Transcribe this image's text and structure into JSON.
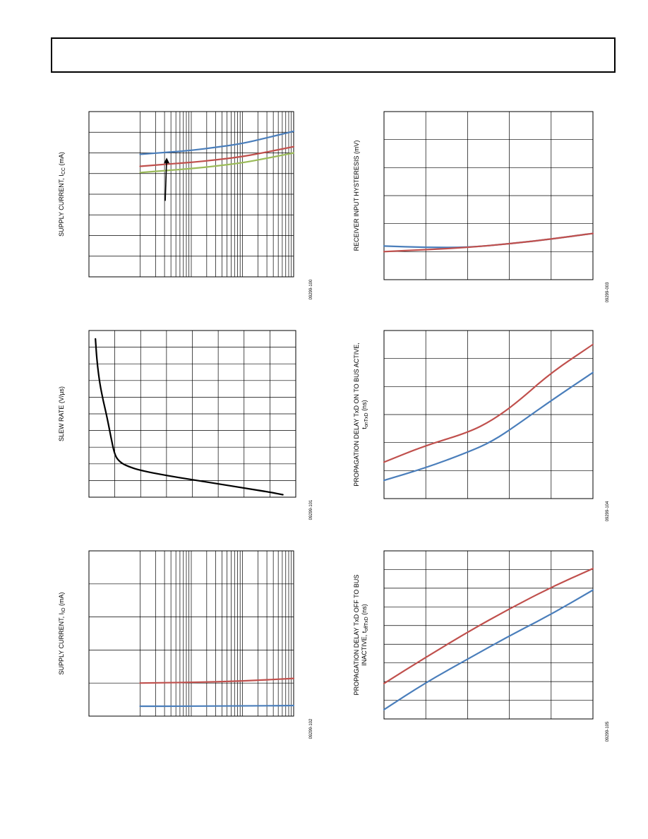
{
  "colors": {
    "blue": "#4a7ebb",
    "red": "#c0504d",
    "green": "#9bbb59",
    "black": "#000000",
    "grid": "#000000"
  },
  "chart_data": [
    {
      "id": "c1",
      "type": "line",
      "title": "",
      "xscale": "log",
      "xlim": [
        0.1,
        1000
      ],
      "ylim": [
        0,
        8
      ],
      "grid": true,
      "ylabel": "SUPPLY CURRENT, I",
      "ylabel_sub": "CC",
      "ylabel_suffix": " (mA)",
      "figure_code": "09299-100",
      "annotation_arrow": true,
      "series": [
        {
          "color": "blue",
          "x": [
            1,
            3,
            10,
            30,
            100,
            300,
            1000
          ],
          "y": [
            5.93,
            6.02,
            6.12,
            6.27,
            6.45,
            6.73,
            7.05
          ]
        },
        {
          "color": "red",
          "x": [
            1,
            3,
            10,
            30,
            100,
            300,
            1000
          ],
          "y": [
            5.35,
            5.45,
            5.54,
            5.66,
            5.82,
            6.04,
            6.3
          ]
        },
        {
          "color": "green",
          "x": [
            1,
            3,
            10,
            30,
            100,
            300,
            1000
          ],
          "y": [
            5.05,
            5.14,
            5.24,
            5.36,
            5.52,
            5.74,
            6.0
          ]
        }
      ]
    },
    {
      "id": "c2",
      "type": "line",
      "title": "",
      "xscale": "linear",
      "xlim": [
        0,
        8
      ],
      "ylim": [
        0,
        10
      ],
      "grid": true,
      "ylabel": "SLEW RATE (V/µs)",
      "figure_code": "09299-101",
      "series": [
        {
          "color": "black",
          "x": [
            0.25,
            0.32,
            0.42,
            0.55,
            0.7,
            0.85,
            1.0,
            1.2,
            1.5,
            2.0,
            3.0,
            4.0,
            5.0,
            6.0,
            7.0,
            7.5
          ],
          "y": [
            9.5,
            8.0,
            6.8,
            5.8,
            4.8,
            3.6,
            2.5,
            2.1,
            1.85,
            1.6,
            1.3,
            1.05,
            0.8,
            0.55,
            0.3,
            0.15
          ]
        }
      ]
    },
    {
      "id": "c3",
      "type": "line",
      "title": "",
      "xscale": "log",
      "xlim": [
        0.1,
        1000
      ],
      "ylim": [
        0,
        5
      ],
      "grid": true,
      "ylabel": "SUPPLY CURRENT, I",
      "ylabel_sub": "IO",
      "ylabel_suffix": " (mA)",
      "figure_code": "09299-102",
      "series": [
        {
          "color": "red",
          "x": [
            1,
            10,
            100,
            1000
          ],
          "y": [
            1.0,
            1.02,
            1.06,
            1.14
          ]
        },
        {
          "color": "blue",
          "x": [
            1,
            10,
            100,
            1000
          ],
          "y": [
            0.3,
            0.3,
            0.31,
            0.32
          ]
        }
      ]
    },
    {
      "id": "c4",
      "type": "line",
      "title": "",
      "xscale": "linear",
      "xlim": [
        0,
        5
      ],
      "ylim": [
        0,
        6
      ],
      "grid": true,
      "ylabel": "RECEIVER INPUT HYSTERESIS (mV)",
      "figure_code": "09299-003",
      "series": [
        {
          "color": "blue",
          "x": [
            0,
            1,
            2,
            3,
            4,
            5
          ],
          "y": [
            1.2,
            1.15,
            1.15,
            1.28,
            1.45,
            1.65
          ]
        },
        {
          "color": "red",
          "x": [
            0,
            1,
            2,
            3,
            4,
            5
          ],
          "y": [
            1.0,
            1.07,
            1.15,
            1.28,
            1.45,
            1.65
          ]
        }
      ]
    },
    {
      "id": "c5",
      "type": "line",
      "title": "",
      "xscale": "linear",
      "xlim": [
        0,
        5
      ],
      "ylim": [
        0,
        6
      ],
      "grid": true,
      "ylabel": "PROPAGATION DELAY TxD ON TO BUS ACTIVE,",
      "ylabel2": "t",
      "ylabel2_sub": "onTxD",
      "ylabel2_suffix": " (ns)",
      "figure_code": "09299-104",
      "series": [
        {
          "color": "red",
          "x": [
            0,
            1,
            2,
            2.6,
            3.2,
            4,
            5
          ],
          "y": [
            1.3,
            1.9,
            2.35,
            2.8,
            3.45,
            4.5,
            5.5
          ]
        },
        {
          "color": "blue",
          "x": [
            0,
            1,
            2,
            2.6,
            3.2,
            4,
            5
          ],
          "y": [
            0.65,
            1.1,
            1.65,
            2.05,
            2.65,
            3.5,
            4.5
          ]
        }
      ]
    },
    {
      "id": "c6",
      "type": "line",
      "title": "",
      "xscale": "linear",
      "xlim": [
        0,
        5
      ],
      "ylim": [
        0,
        9
      ],
      "grid": true,
      "ylabel": "PROPAGATION DELAY TxD OFF TO BUS",
      "ylabel2": "INACTIVE, t",
      "ylabel2_sub": "offTxD",
      "ylabel2_suffix": " (ns)",
      "figure_code": "09299-105",
      "series": [
        {
          "color": "red",
          "x": [
            0,
            1,
            2,
            3,
            4,
            5
          ],
          "y": [
            1.9,
            3.3,
            4.65,
            5.9,
            7.05,
            8.05
          ]
        },
        {
          "color": "blue",
          "x": [
            0,
            1,
            2,
            3,
            4,
            5
          ],
          "y": [
            0.5,
            1.95,
            3.2,
            4.45,
            5.6,
            6.9
          ]
        }
      ]
    }
  ]
}
